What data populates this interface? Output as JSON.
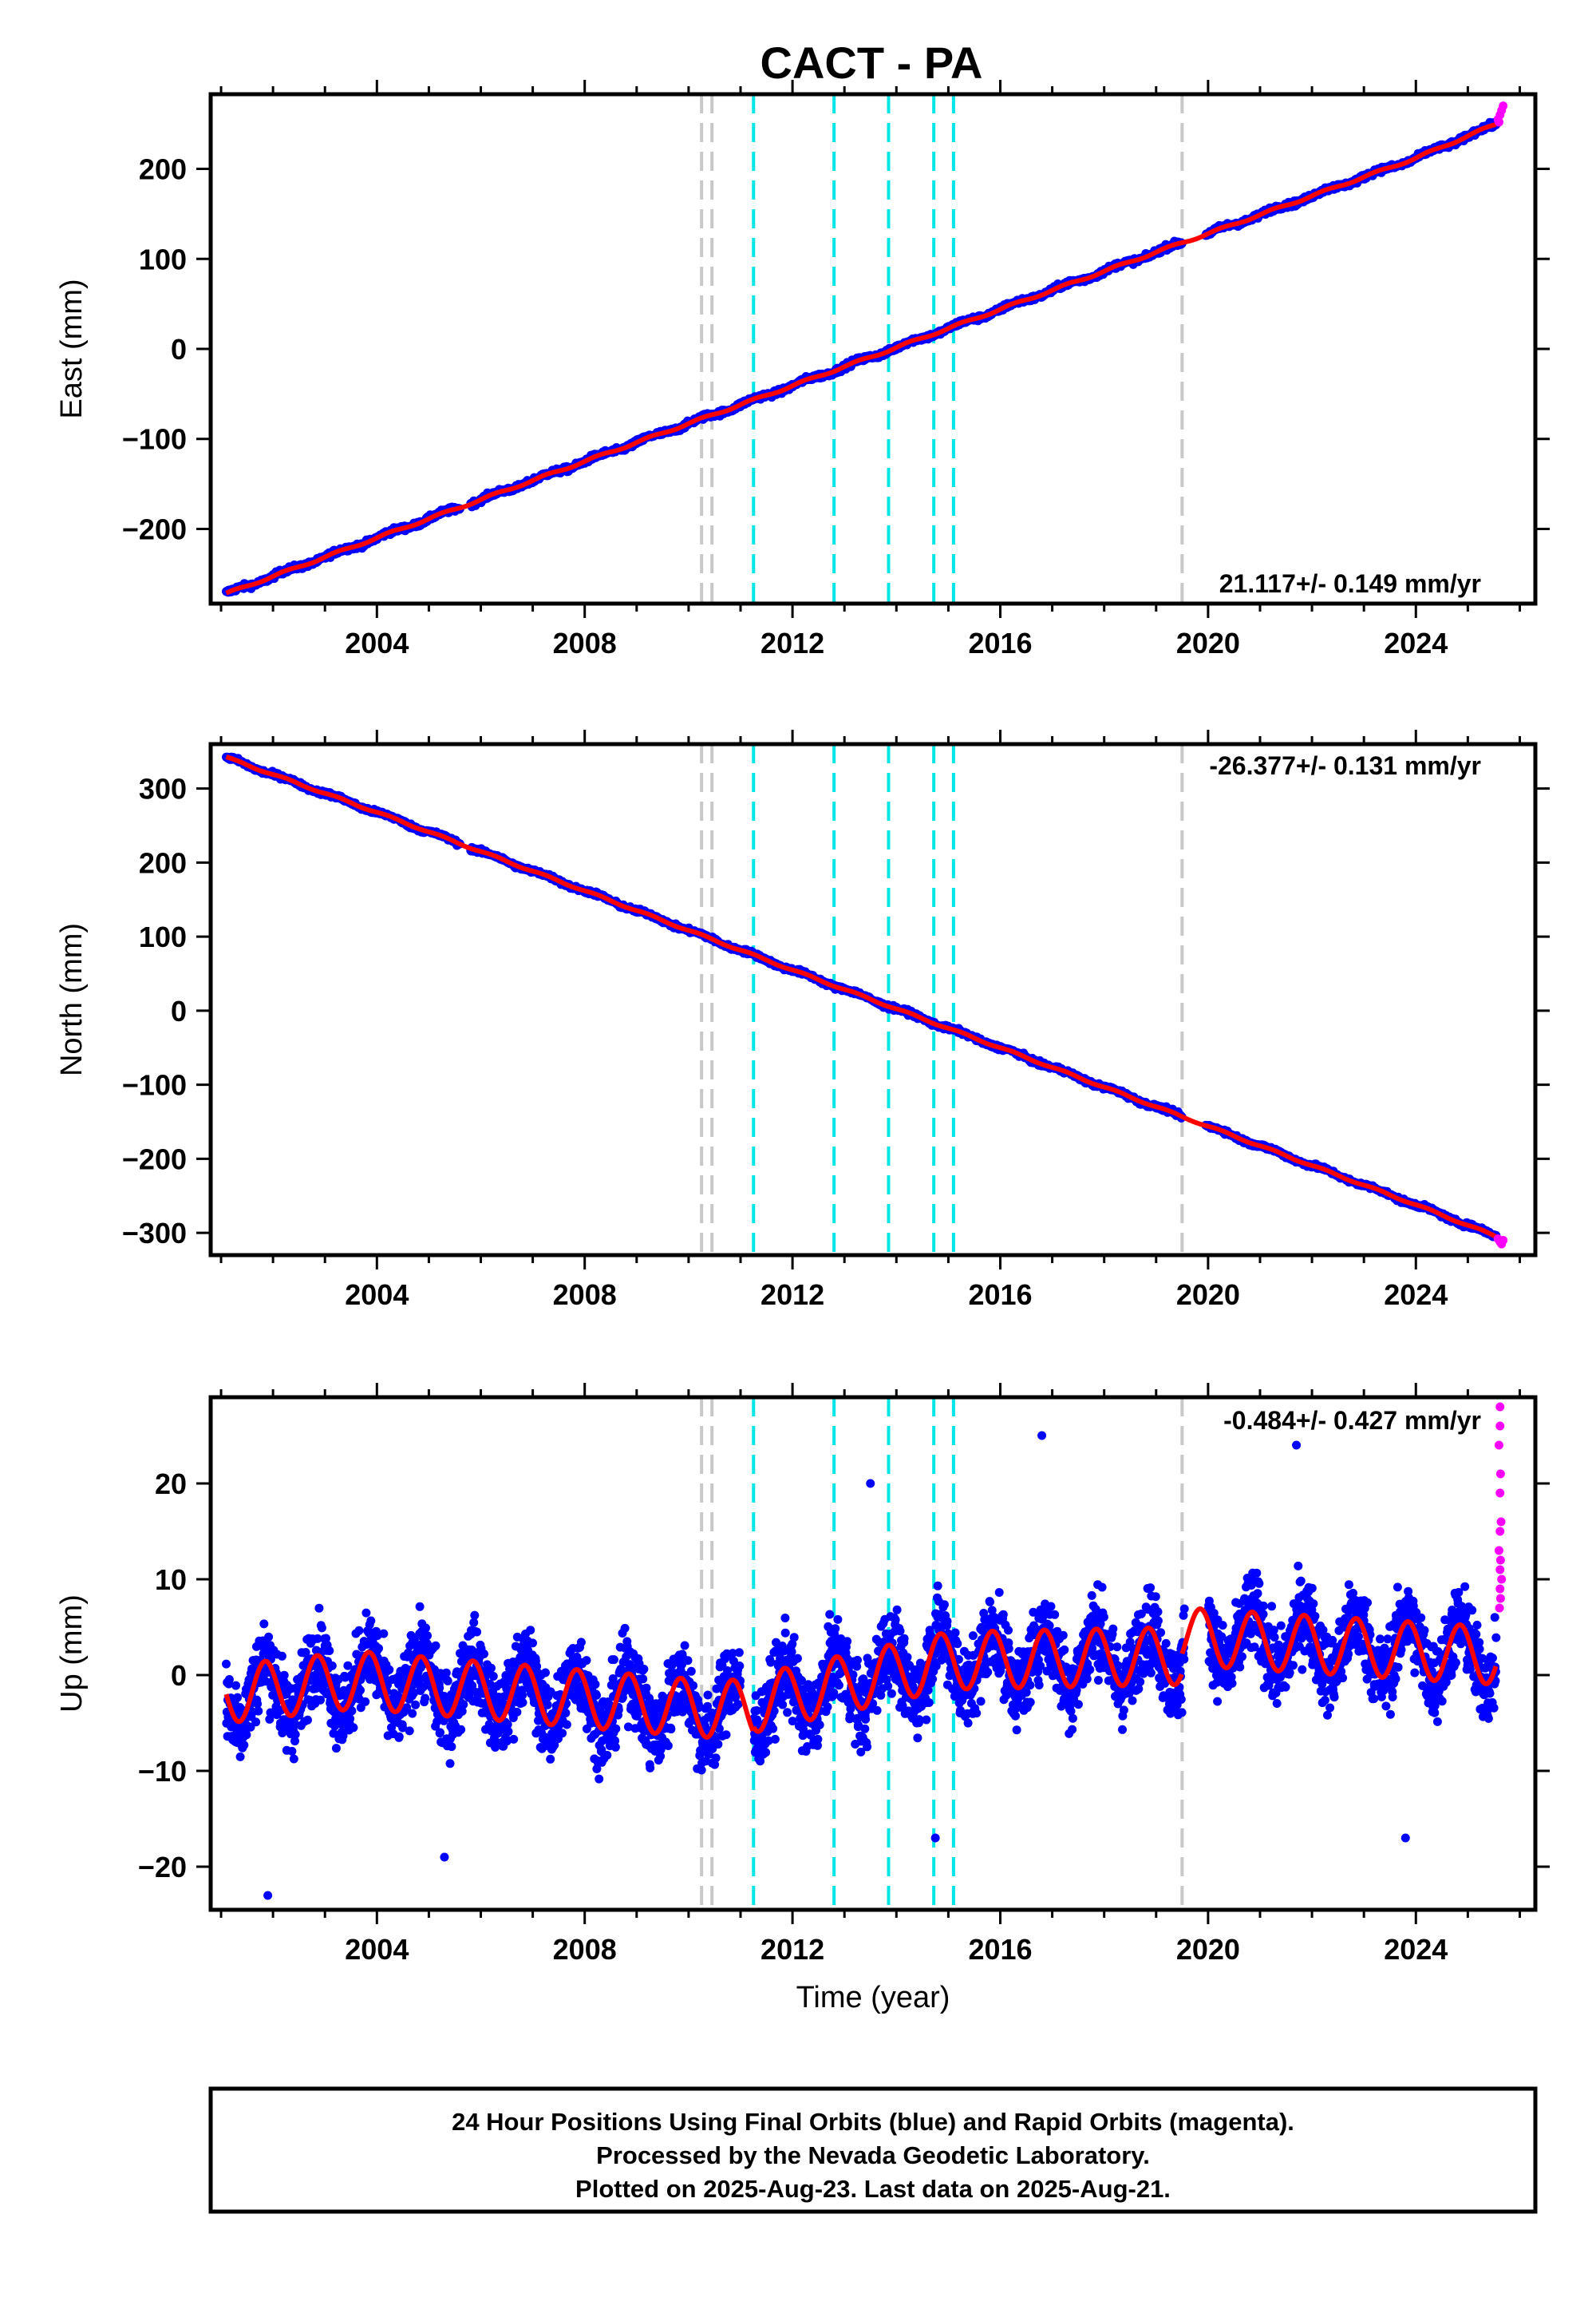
{
  "chart_data": {
    "type": "scatter",
    "title": "CACT - PA",
    "xlabel": "Time (year)",
    "xlim": [
      2000.8,
      2026.3
    ],
    "x_ticks": [
      "2004",
      "2008",
      "2012",
      "2016",
      "2020",
      "2024"
    ],
    "x_tick_values": [
      2004,
      2008,
      2012,
      2016,
      2020,
      2024
    ],
    "x_minor_ticks": [
      2001,
      2002,
      2003,
      2005,
      2006,
      2007,
      2009,
      2010,
      2011,
      2013,
      2014,
      2015,
      2017,
      2018,
      2019,
      2021,
      2022,
      2023,
      2025,
      2026
    ],
    "equipment_changes_gray": [
      2010.25,
      2010.45,
      2019.5
    ],
    "events_cyan": [
      2011.25,
      2012.8,
      2013.85,
      2014.72,
      2015.1
    ],
    "colors": {
      "final": "#0000ff",
      "rapid": "#ff00ff",
      "model": "#ff0000",
      "gray": "#c8c8c8",
      "cyan": "#00e5e5"
    },
    "panels": [
      {
        "ylabel": "East (mm)",
        "ylim": [
          -283,
          283
        ],
        "yticks": [
          -200,
          -100,
          0,
          100,
          200
        ],
        "y_tick_labels": [
          "−200",
          "−100",
          "0",
          "100",
          "200"
        ],
        "rate_label": "21.117+/- 0.149 mm/yr",
        "rate_position": "bottom-right",
        "model_points": [
          [
            2001.1,
            -272
          ],
          [
            2004.0,
            -210
          ],
          [
            2008.0,
            -125
          ],
          [
            2012.0,
            -41
          ],
          [
            2016.0,
            44
          ],
          [
            2019.5,
            118
          ],
          [
            2020.0,
            128
          ],
          [
            2024.0,
            212
          ],
          [
            2025.55,
            250
          ]
        ],
        "rapid_points": [
          [
            2025.58,
            255
          ],
          [
            2025.62,
            260
          ],
          [
            2025.65,
            265
          ],
          [
            2025.68,
            270
          ],
          [
            2025.6,
            252
          ]
        ]
      },
      {
        "ylabel": "North (mm)",
        "ylim": [
          -330,
          360
        ],
        "yticks": [
          -300,
          -200,
          -100,
          0,
          100,
          200,
          300
        ],
        "y_tick_labels": [
          "−300",
          "−200",
          "−100",
          "0",
          "100",
          "200",
          "300"
        ],
        "rate_label": "-26.377+/- 0.131 mm/yr",
        "rate_position": "top-right",
        "model_points": [
          [
            2001.1,
            342
          ],
          [
            2004.0,
            268
          ],
          [
            2008.0,
            162
          ],
          [
            2012.0,
            55
          ],
          [
            2016.0,
            -50
          ],
          [
            2019.5,
            -143
          ],
          [
            2020.0,
            -156
          ],
          [
            2024.0,
            -262
          ],
          [
            2025.55,
            -305
          ]
        ],
        "rapid_points": [
          [
            2025.58,
            -308
          ],
          [
            2025.62,
            -312
          ],
          [
            2025.65,
            -315
          ],
          [
            2025.68,
            -310
          ]
        ]
      },
      {
        "ylabel": "Up (mm)",
        "ylim": [
          -24.5,
          29
        ],
        "yticks": [
          -20,
          -10,
          0,
          10,
          20
        ],
        "y_tick_labels": [
          "−20",
          "−10",
          "0",
          "10",
          "20"
        ],
        "rate_label": "-0.484+/- 0.427 mm/yr",
        "rate_position": "top-right",
        "seasonal_amplitude_mm": 3.0,
        "offsets": [
          {
            "from": 2001.1,
            "to": 2011.25,
            "mean": [
              [
                2001.1,
                -2.0
              ],
              [
                2003.6,
                -0.5
              ],
              [
                2010.25,
                -3.5
              ]
            ]
          },
          {
            "from": 2011.25,
            "to": 2019.5,
            "mean": [
              [
                2011.25,
                -3.0
              ],
              [
                2015.0,
                1.5
              ],
              [
                2019.5,
                2.0
              ]
            ]
          },
          {
            "from": 2019.5,
            "to": 2025.6,
            "mean": [
              [
                2019.6,
                4.0
              ],
              [
                2025.6,
                2.0
              ]
            ]
          }
        ],
        "rapid_points": [
          [
            2025.62,
            28
          ],
          [
            2025.62,
            26
          ],
          [
            2025.6,
            24
          ],
          [
            2025.63,
            21
          ],
          [
            2025.62,
            19
          ],
          [
            2025.64,
            16
          ],
          [
            2025.62,
            15
          ],
          [
            2025.6,
            13
          ],
          [
            2025.63,
            12
          ],
          [
            2025.62,
            11
          ],
          [
            2025.65,
            10
          ],
          [
            2025.62,
            9
          ],
          [
            2025.63,
            8
          ],
          [
            2025.61,
            7
          ]
        ],
        "outliers": [
          [
            2001.9,
            -23
          ],
          [
            2005.3,
            -19
          ],
          [
            2016.8,
            25
          ],
          [
            2021.7,
            24
          ],
          [
            2014.75,
            -17
          ],
          [
            2013.5,
            20
          ],
          [
            2023.8,
            -17
          ]
        ]
      }
    ],
    "scatter_note": "dense daily positions (blue) scattered about the model",
    "footer_lines": [
      "24 Hour Positions Using Final Orbits (blue) and Rapid Orbits (magenta).",
      "Processed by the Nevada Geodetic Laboratory.",
      "Plotted on 2025-Aug-23. Last data on 2025-Aug-21."
    ]
  }
}
